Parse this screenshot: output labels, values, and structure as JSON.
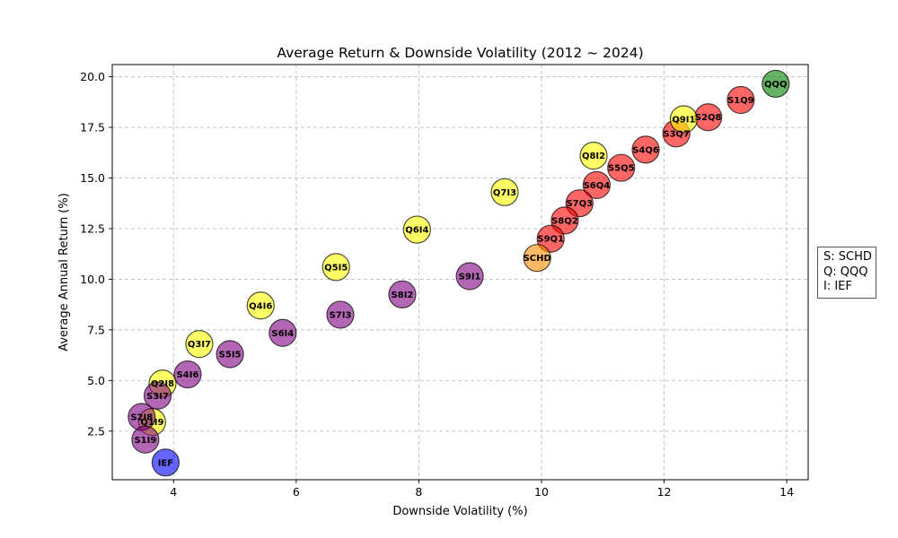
{
  "chart_data": {
    "type": "scatter",
    "title": "Average Return & Downside Volatility (2012 ~ 2024)",
    "xlabel": "Downside Volatility (%)",
    "ylabel": "Average Annual Return (%)",
    "xlim": [
      3.0,
      14.35
    ],
    "ylim": [
      0.1,
      20.6
    ],
    "xticks": [
      4,
      6,
      8,
      10,
      12,
      14
    ],
    "xtick_labels": [
      "4",
      "6",
      "8",
      "10",
      "12",
      "14"
    ],
    "yticks": [
      2.5,
      5.0,
      7.5,
      10.0,
      12.5,
      15.0,
      17.5,
      20.0
    ],
    "ytick_labels": [
      "2.5",
      "5.0",
      "7.5",
      "10.0",
      "12.5",
      "15.0",
      "17.5",
      "20.0"
    ],
    "grid": true,
    "colors": {
      "qqq_only": "#008000",
      "ief_only": "#0000ff",
      "schd_only": "#ff8c00",
      "schd_qqq": "#ff0000",
      "qqq_ief": "#ffff00",
      "schd_ief": "#800080"
    },
    "points": [
      {
        "label": "QQQ",
        "x": 13.82,
        "y": 19.65,
        "group": "qqq_only"
      },
      {
        "label": "S1Q9",
        "x": 13.25,
        "y": 18.85,
        "group": "schd_qqq"
      },
      {
        "label": "S2Q8",
        "x": 12.72,
        "y": 18.0,
        "group": "schd_qqq"
      },
      {
        "label": "S3Q7",
        "x": 12.2,
        "y": 17.2,
        "group": "schd_qqq"
      },
      {
        "label": "S4Q6",
        "x": 11.7,
        "y": 16.4,
        "group": "schd_qqq"
      },
      {
        "label": "S5Q5",
        "x": 11.3,
        "y": 15.5,
        "group": "schd_qqq"
      },
      {
        "label": "S6Q4",
        "x": 10.9,
        "y": 14.65,
        "group": "schd_qqq"
      },
      {
        "label": "S7Q3",
        "x": 10.62,
        "y": 13.75,
        "group": "schd_qqq"
      },
      {
        "label": "S8Q2",
        "x": 10.38,
        "y": 12.9,
        "group": "schd_qqq"
      },
      {
        "label": "S9Q1",
        "x": 10.15,
        "y": 12.0,
        "group": "schd_qqq"
      },
      {
        "label": "SCHD",
        "x": 9.93,
        "y": 11.05,
        "group": "schd_only"
      },
      {
        "label": "Q9I1",
        "x": 12.32,
        "y": 17.9,
        "group": "qqq_ief"
      },
      {
        "label": "Q8I2",
        "x": 10.85,
        "y": 16.1,
        "group": "qqq_ief"
      },
      {
        "label": "Q7I3",
        "x": 9.4,
        "y": 14.3,
        "group": "qqq_ief"
      },
      {
        "label": "Q6I4",
        "x": 7.97,
        "y": 12.45,
        "group": "qqq_ief"
      },
      {
        "label": "Q5I5",
        "x": 6.65,
        "y": 10.6,
        "group": "qqq_ief"
      },
      {
        "label": "Q4I6",
        "x": 5.42,
        "y": 8.7,
        "group": "qqq_ief"
      },
      {
        "label": "Q3I7",
        "x": 4.42,
        "y": 6.8,
        "group": "qqq_ief"
      },
      {
        "label": "Q2I8",
        "x": 3.82,
        "y": 4.85,
        "group": "qqq_ief"
      },
      {
        "label": "Q1I9",
        "x": 3.65,
        "y": 2.95,
        "group": "qqq_ief"
      },
      {
        "label": "S9I1",
        "x": 8.83,
        "y": 10.15,
        "group": "schd_ief"
      },
      {
        "label": "S8I2",
        "x": 7.73,
        "y": 9.25,
        "group": "schd_ief"
      },
      {
        "label": "S7I3",
        "x": 6.72,
        "y": 8.25,
        "group": "schd_ief"
      },
      {
        "label": "S6I4",
        "x": 5.78,
        "y": 7.35,
        "group": "schd_ief"
      },
      {
        "label": "S5I5",
        "x": 4.92,
        "y": 6.3,
        "group": "schd_ief"
      },
      {
        "label": "S4I6",
        "x": 4.23,
        "y": 5.3,
        "group": "schd_ief"
      },
      {
        "label": "S3I7",
        "x": 3.74,
        "y": 4.25,
        "group": "schd_ief"
      },
      {
        "label": "S2I8",
        "x": 3.48,
        "y": 3.2,
        "group": "schd_ief"
      },
      {
        "label": "S1I9",
        "x": 3.54,
        "y": 2.08,
        "group": "schd_ief"
      },
      {
        "label": "IEF",
        "x": 3.87,
        "y": 0.95,
        "group": "ief_only"
      }
    ],
    "legend_text": [
      "S: SCHD",
      "Q: QQQ",
      "I: IEF"
    ],
    "legend_placement": "outside-right"
  }
}
